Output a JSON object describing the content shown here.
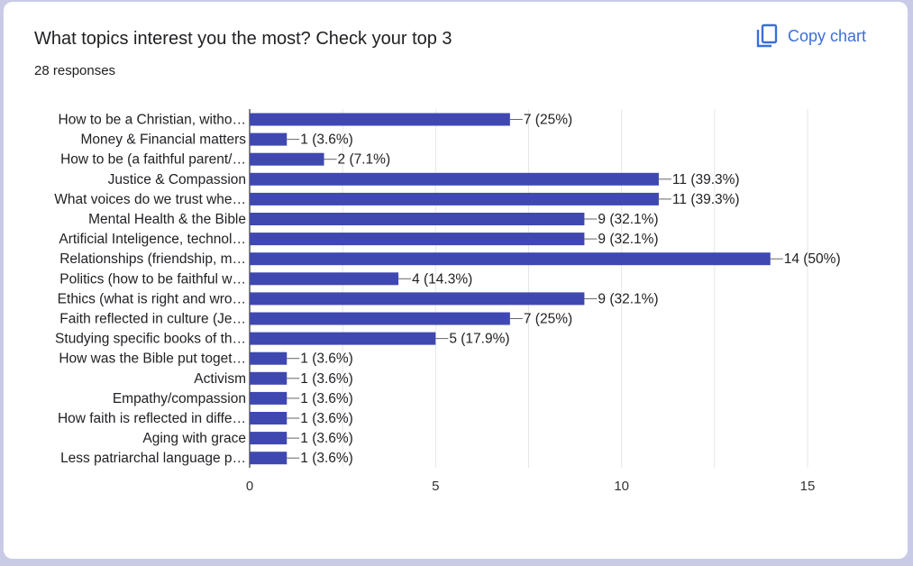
{
  "header": {
    "title": "What topics interest you the most? Check your top 3",
    "responses": "28 responses",
    "copy_label": "Copy chart",
    "copy_icon": "copy-icon"
  },
  "colors": {
    "bar": "#3f48b0",
    "link": "#3b6fd8",
    "text": "#202124",
    "grid": "#e6e6e6"
  },
  "chart_data": {
    "type": "bar",
    "orientation": "horizontal",
    "xlim": [
      0,
      15
    ],
    "xticks": [
      0,
      5,
      10,
      15
    ],
    "grid": true,
    "categories": [
      "How to be a Christian, witho…",
      "Money & Financial matters",
      "How to be (a faithful parent/…",
      "Justice & Compassion",
      "What voices do we trust whe…",
      "Mental Health & the Bible",
      "Artificial Inteligence, technol…",
      "Relationships (friendship, m…",
      "Politics (how to be faithful w…",
      "Ethics (what is right and wro…",
      "Faith reflected in culture (Je…",
      "Studying specific books of th…",
      "How was the Bible put toget…",
      "Activism",
      "Empathy/compassion",
      "How faith is reflected in diffe…",
      "Aging with grace",
      "Less patriarchal language p…"
    ],
    "values": [
      7,
      1,
      2,
      11,
      11,
      9,
      9,
      14,
      4,
      9,
      7,
      5,
      1,
      1,
      1,
      1,
      1,
      1
    ],
    "labels": [
      "7 (25%)",
      "1 (3.6%)",
      "2 (7.1%)",
      "11 (39.3%)",
      "11 (39.3%)",
      "9 (32.1%)",
      "9 (32.1%)",
      "14 (50%)",
      "4 (14.3%)",
      "9 (32.1%)",
      "7 (25%)",
      "5 (17.9%)",
      "1 (3.6%)",
      "1 (3.6%)",
      "1 (3.6%)",
      "1 (3.6%)",
      "1 (3.6%)",
      "1 (3.6%)"
    ]
  }
}
